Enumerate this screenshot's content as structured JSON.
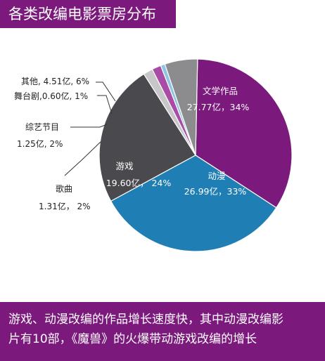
{
  "title": "各类改编电影票房分布",
  "footer_lines": [
    "游戏、动漫改编的作品增长速度快，其中动漫改编影",
    "片有10部，《魔兽》的火爆带动游戏改编的增长"
  ],
  "chart_data": {
    "type": "pie",
    "unit": "亿",
    "slices": [
      {
        "name": "文学作品",
        "value": 27.77,
        "percent": 34,
        "label_value": "27.77亿，34%",
        "color": "#7b1a7c"
      },
      {
        "name": "动漫",
        "value": 26.99,
        "percent": 33,
        "label_value": "26.99亿，33%",
        "color": "#1f7fb4"
      },
      {
        "name": "游戏",
        "value": 19.6,
        "percent": 24,
        "label_value": "19.60亿， 24%",
        "color": "#4a4a4e"
      },
      {
        "name": "歌曲",
        "value": 1.31,
        "percent": 2,
        "label_value": "1.31亿， 2%",
        "color": "#c7c7c9"
      },
      {
        "name": "综艺节目",
        "value": 1.25,
        "percent": 2,
        "label_value": "1.25亿, 2%",
        "color": "#a84ca6"
      },
      {
        "name": "舞台剧",
        "value": 0.6,
        "percent": 1,
        "label_value": "舞台剧,0.60亿, 1%",
        "color": "#8fc4e4"
      },
      {
        "name": "其他",
        "value": 4.51,
        "percent": 6,
        "label_value": "其他, 4.51亿, 6%",
        "color": "#8c8c8f"
      }
    ]
  }
}
